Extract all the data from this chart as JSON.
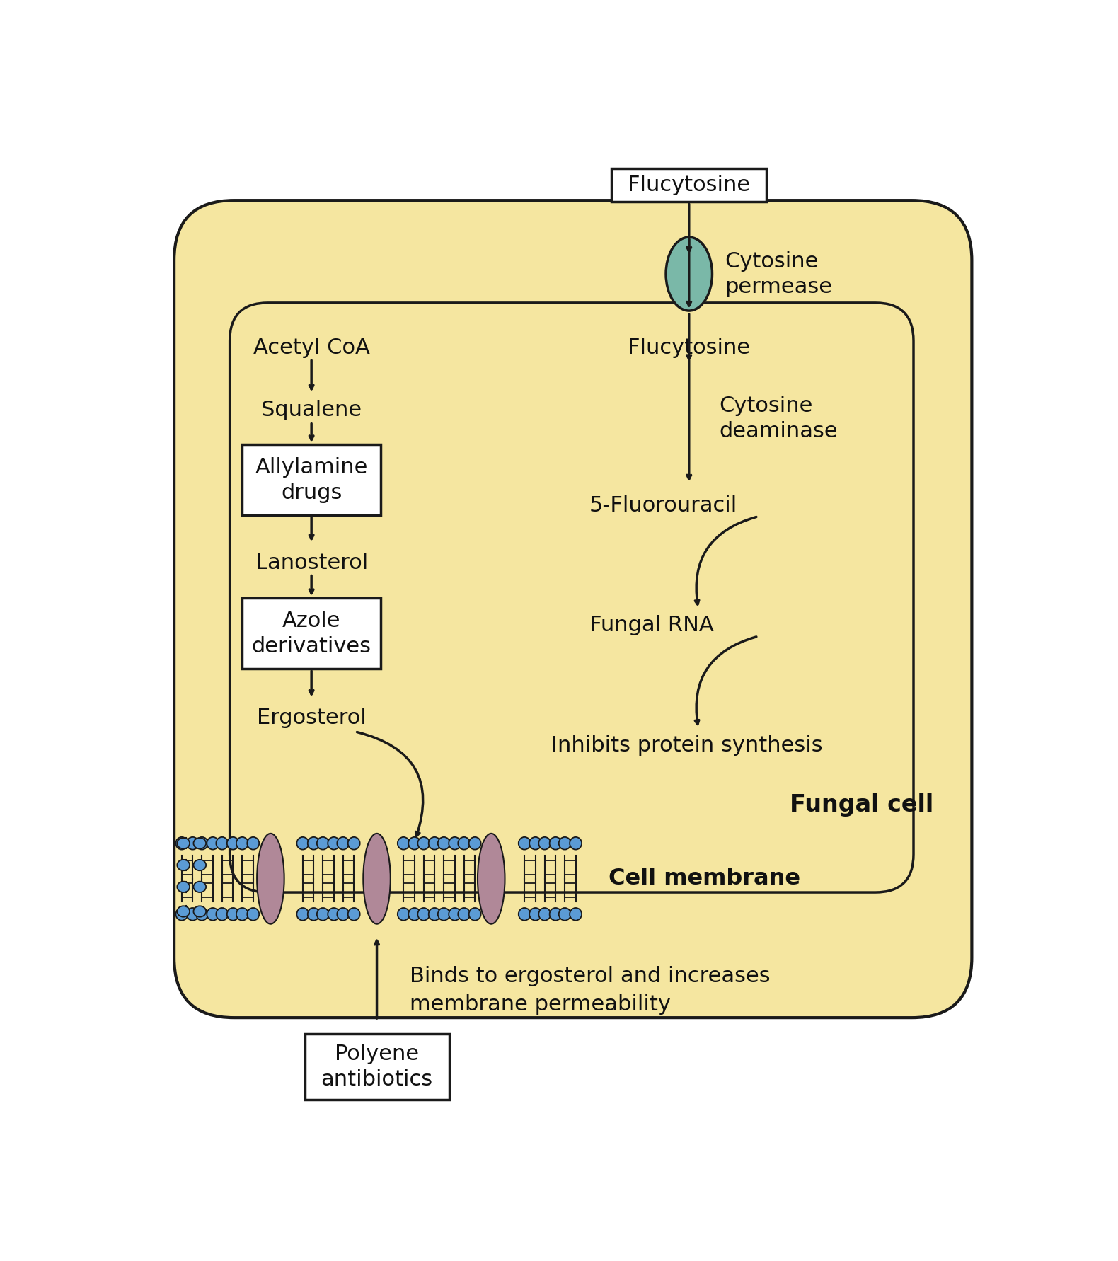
{
  "bg_color": "#ffffff",
  "outer_cell_color": "#f5e6a0",
  "outer_cell_edge": "#1a1a1a",
  "inner_cell_color": "#f5e6a0",
  "inner_cell_edge": "#1a1a1a",
  "box_color": "#ffffff",
  "box_edge": "#1a1a1a",
  "arrow_color": "#1a1a1a",
  "phospholipid_head_color": "#5b9bd5",
  "ergosterol_color": "#b08898",
  "permease_color": "#7ab8a8",
  "text_color": "#111111",
  "labels": {
    "flucytosine_box": "Flucytosine",
    "cytosine_permease": "Cytosine\npermease",
    "acetyl_coa": "Acetyl CoA",
    "squalene": "Squalene",
    "allylamine": "Allylamine\ndrugs",
    "lanosterol": "Lanosterol",
    "azole": "Azole\nderivatives",
    "ergosterol": "Ergosterol",
    "flucytosine_inner": "Flucytosine",
    "cytosine_deaminase": "Cytosine\ndeaminase",
    "fluorouracil": "5-Fluorouracil",
    "fungal_rna": "Fungal RNA",
    "inhibits": "Inhibits protein synthesis",
    "fungal_cell": "Fungal cell",
    "cell_membrane": "Cell membrane",
    "polyene_box": "Polyene\nantibiotics",
    "binds": "Binds to ergosterol and increases\nmembrane permeability"
  }
}
